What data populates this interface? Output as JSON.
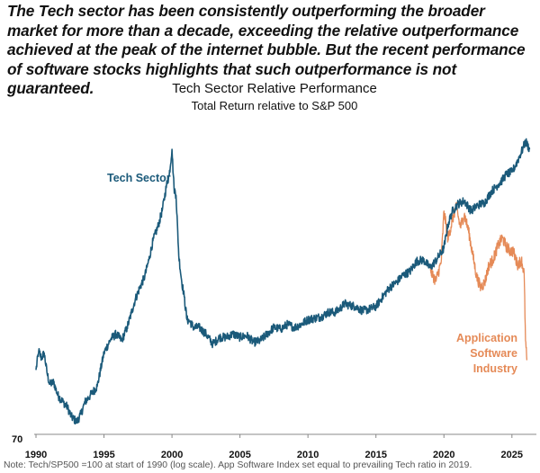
{
  "headline": "The Tech sector has been consistently outperforming the broader market for more than a decade, exceeding the relative outperformance achieved at the peak of the internet bubble. But the recent performance of software stocks highlights that such outperformance is not guaranteed.",
  "footnote": "Note: Tech/SP500 =100 at start of 1990 (log scale). App Software Index set equal to prevailing Tech ratio in 2019.",
  "colors": {
    "tech": "#1b5a7a",
    "software": "#e58a57",
    "text": "#111111",
    "axis": "#888888"
  },
  "chart_data": {
    "type": "line",
    "title": "Tech Sector Relative Performance",
    "subtitle": "Total Return relative to S&P 500",
    "xlabel": "",
    "ylabel": "",
    "xlim": [
      1990,
      2026.8
    ],
    "ylim": [
      70,
      330
    ],
    "yscale": "log",
    "x_ticks": [
      "1990",
      "1995",
      "2000",
      "2005",
      "2010",
      "2015",
      "2020",
      "2025"
    ],
    "y_ticks": [
      "70"
    ],
    "grid": false,
    "annotations": [
      {
        "label": "tech",
        "lines": [
          "Tech Sector"
        ]
      },
      {
        "label": "software",
        "lines": [
          "Application",
          "Software",
          "Industry"
        ]
      }
    ],
    "series": [
      {
        "name": "Tech Sector",
        "x": [
          1990.0,
          1990.2,
          1990.4,
          1990.6,
          1990.8,
          1991.0,
          1991.3,
          1991.6,
          1992.0,
          1992.3,
          1992.6,
          1993.0,
          1993.3,
          1993.6,
          1994.0,
          1994.5,
          1995.0,
          1995.5,
          1995.9,
          1996.3,
          1996.7,
          1997.0,
          1997.3,
          1997.6,
          1998.0,
          1998.3,
          1998.6,
          1999.0,
          1999.3,
          1999.6,
          1999.8,
          2000.0,
          2000.15,
          2000.3,
          2000.5,
          2000.7,
          2000.9,
          2001.1,
          2001.3,
          2001.6,
          2002.0,
          2002.5,
          2003.0,
          2003.5,
          2004.0,
          2004.5,
          2005.0,
          2005.5,
          2006.0,
          2006.5,
          2007.0,
          2007.5,
          2008.0,
          2008.5,
          2009.0,
          2009.5,
          2010.0,
          2010.5,
          2011.0,
          2011.5,
          2012.0,
          2012.3,
          2012.7,
          2013.0,
          2013.5,
          2014.0,
          2014.5,
          2015.0,
          2015.5,
          2016.0,
          2016.5,
          2017.0,
          2017.5,
          2018.0,
          2018.5,
          2019.0,
          2019.5,
          2020.0,
          2020.3,
          2020.6,
          2021.0,
          2021.5,
          2022.0,
          2022.5,
          2023.0,
          2023.5,
          2024.0,
          2024.3,
          2024.6,
          2025.0,
          2025.3,
          2025.6,
          2025.8,
          2026.0,
          2026.3
        ],
        "values": [
          97,
          107,
          103,
          106,
          96,
          90,
          91,
          85,
          82,
          80,
          76,
          74,
          77,
          82,
          85,
          89,
          106,
          114,
          117,
          113,
          121,
          130,
          140,
          148,
          158,
          172,
          190,
          206,
          224,
          254,
          268,
          306,
          250,
          241,
          176,
          155,
          142,
          126,
          125,
          121,
          121,
          117,
          111,
          115,
          115,
          117,
          115,
          116,
          112,
          113,
          117,
          121,
          120,
          123,
          121,
          123,
          126,
          127,
          128,
          131,
          131,
          133,
          137,
          136,
          135,
          132,
          133,
          135,
          142,
          149,
          153,
          159,
          162,
          171,
          172,
          165,
          173,
          183,
          207,
          221,
          230,
          234,
          222,
          229,
          232,
          246,
          255,
          261,
          269,
          272,
          283,
          297,
          307,
          319,
          306
        ]
      },
      {
        "name": "Application Software Industry",
        "x": [
          2019.0,
          2019.4,
          2019.8,
          2020.0,
          2020.3,
          2020.6,
          2020.9,
          2021.2,
          2021.5,
          2021.8,
          2022.1,
          2022.4,
          2022.7,
          2023.0,
          2023.3,
          2023.6,
          2024.0,
          2024.3,
          2024.6,
          2024.9,
          2025.1,
          2025.4,
          2025.7,
          2025.9,
          2026.0,
          2026.1
        ],
        "values": [
          163,
          154,
          170,
          222,
          192,
          210,
          228,
          204,
          218,
          201,
          178,
          158,
          149,
          153,
          167,
          172,
          186,
          193,
          184,
          180,
          180,
          168,
          172,
          160,
          113,
          102
        ]
      }
    ]
  }
}
